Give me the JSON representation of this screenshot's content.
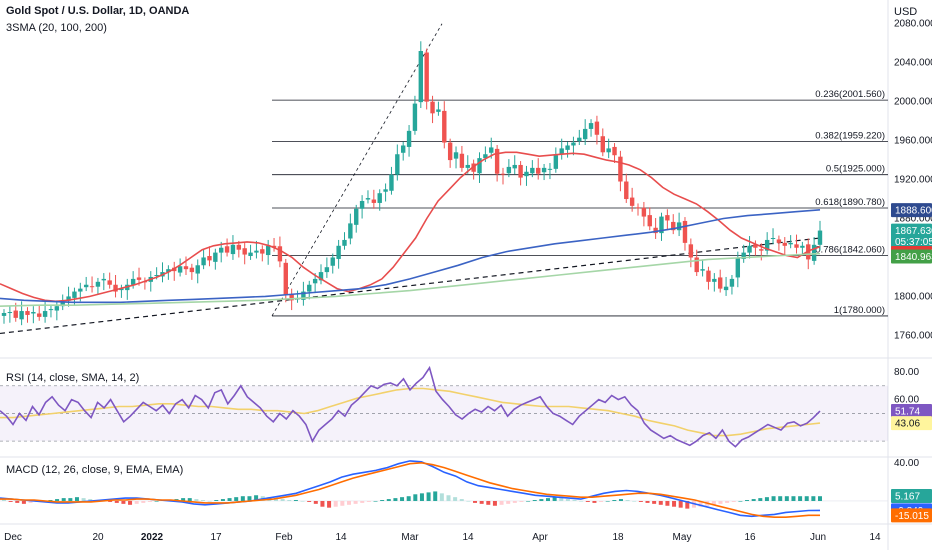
{
  "header": {
    "title": "Gold Spot / U.S. Dollar, 1D, OANDA",
    "ma_legend": "3SMA (20, 100, 200)",
    "currency": "USD"
  },
  "chart_data": [
    {
      "type": "candlestick",
      "title": "Gold Spot / U.S. Dollar, 1D, OANDA",
      "ylabel": "USD",
      "ylim": [
        1745,
        2090
      ],
      "y_ticks": [
        "2080.000",
        "2040.000",
        "2000.000",
        "1960.000",
        "1920.000",
        "1880.000",
        "1840.000",
        "1800.000",
        "1760.000"
      ],
      "x_ticks": [
        "Dec",
        "20",
        "2022",
        "17",
        "Feb",
        "14",
        "Mar",
        "14",
        "Apr",
        "18",
        "May",
        "16",
        "Jun",
        "14"
      ],
      "up_color": "#26a69a",
      "down_color": "#ef5350",
      "closes": [
        1783,
        1784,
        1778,
        1785,
        1781,
        1784,
        1779,
        1785,
        1787,
        1790,
        1794,
        1800,
        1805,
        1808,
        1812,
        1810,
        1815,
        1818,
        1812,
        1805,
        1808,
        1812,
        1818,
        1817,
        1815,
        1820,
        1822,
        1825,
        1828,
        1826,
        1831,
        1828,
        1825,
        1832,
        1840,
        1837,
        1845,
        1850,
        1845,
        1853,
        1848,
        1843,
        1845,
        1847,
        1844,
        1852,
        1850,
        1836,
        1802,
        1796,
        1798,
        1805,
        1812,
        1818,
        1825,
        1830,
        1840,
        1852,
        1858,
        1875,
        1890,
        1898,
        1901,
        1896,
        1906,
        1910,
        1925,
        1946,
        1955,
        1970,
        1998,
        2052,
        2000,
        1988,
        1992,
        1958,
        1940,
        1948,
        1932,
        1935,
        1928,
        1942,
        1946,
        1953,
        1926,
        1925,
        1933,
        1935,
        1922,
        1928,
        1932,
        1926,
        1932,
        1931,
        1945,
        1952,
        1955,
        1958,
        1963,
        1972,
        1978,
        1966,
        1948,
        1952,
        1945,
        1918,
        1900,
        1893,
        1891,
        1882,
        1872,
        1865,
        1882,
        1878,
        1868,
        1876,
        1855,
        1840,
        1825,
        1828,
        1815,
        1818,
        1808,
        1810,
        1818,
        1840,
        1845,
        1852,
        1850,
        1847,
        1858,
        1860,
        1855,
        1852,
        1855,
        1850,
        1852,
        1838,
        1853,
        1867.63
      ],
      "series": [
        {
          "name": "SMA 20",
          "color": "#e84d4d",
          "values": [
            1813,
            1808,
            1803,
            1799,
            1796,
            1795,
            1796,
            1798,
            1800,
            1803,
            1806,
            1809,
            1812,
            1816,
            1820,
            1825,
            1832,
            1840,
            1848,
            1852,
            1854,
            1855,
            1856,
            1855,
            1852,
            1847,
            1840,
            1830,
            1822,
            1815,
            1808,
            1805,
            1808,
            1812,
            1818,
            1830,
            1845,
            1860,
            1880,
            1898,
            1910,
            1922,
            1932,
            1940,
            1946,
            1948,
            1948,
            1946,
            1944,
            1945,
            1946,
            1947,
            1946,
            1943,
            1940,
            1938,
            1935,
            1930,
            1922,
            1912,
            1905,
            1900,
            1895,
            1887,
            1878,
            1868,
            1860,
            1855,
            1850,
            1846,
            1842,
            1840,
            1847,
            1851
          ]
        },
        {
          "name": "SMA 100",
          "color": "#3b63c4",
          "values": [
            1798,
            1796,
            1795,
            1794,
            1794,
            1794,
            1795,
            1796,
            1797,
            1798,
            1799,
            1800,
            1802,
            1804,
            1806,
            1808,
            1812,
            1818,
            1825,
            1832,
            1840,
            1846,
            1850,
            1854,
            1857,
            1860,
            1863,
            1866,
            1870,
            1875,
            1880,
            1883,
            1885,
            1887,
            1889
          ]
        },
        {
          "name": "SMA 200",
          "color": "#a5d6a7",
          "values": [
            1790,
            1791,
            1791,
            1792,
            1793,
            1794,
            1795,
            1796,
            1798,
            1800,
            1803,
            1806,
            1810,
            1814,
            1818,
            1822,
            1826,
            1830,
            1834,
            1838,
            1840,
            1842,
            1844
          ]
        }
      ],
      "fibonacci": [
        {
          "label": "0.236(2001.560)",
          "value": 2001.56
        },
        {
          "label": "0.382(1959.220)",
          "value": 1959.22
        },
        {
          "label": "0.5(1925.000)",
          "value": 1925.0
        },
        {
          "label": "0.618(1890.780)",
          "value": 1890.78
        },
        {
          "label": "0.786(1842.060)",
          "value": 1842.06
        },
        {
          "label": "1(1780.000)",
          "value": 1780.0
        }
      ],
      "price_labels": [
        {
          "text": "1888.600",
          "value": 1888.6,
          "bg": "#2e4a8f",
          "fg": "#ffffff"
        },
        {
          "text": "1867.630",
          "value": 1867.63,
          "bg": "#26a69a",
          "fg": "#ffffff"
        },
        {
          "text": "05:37:05",
          "value": 1856.5,
          "bg": "#26a69a",
          "fg": "#ffffff"
        },
        {
          "text": "1844.577",
          "value": 1844.577,
          "bg": "#e53935",
          "fg": "#ffffff"
        },
        {
          "text": "1840.963",
          "value": 1840.963,
          "bg": "#43a047",
          "fg": "#ffffff"
        }
      ]
    },
    {
      "type": "line",
      "title": "RSI (14, close, SMA, 14, 2)",
      "ylim": [
        20,
        85
      ],
      "y_ticks": [
        "80.00",
        "60.00"
      ],
      "bands": [
        70,
        50,
        30
      ],
      "series": [
        {
          "name": "RSI",
          "color": "#7e57c2",
          "values": [
            52,
            48,
            42,
            50,
            45,
            55,
            49,
            58,
            62,
            56,
            52,
            60,
            58,
            52,
            47,
            58,
            54,
            60,
            52,
            44,
            48,
            53,
            58,
            55,
            52,
            56,
            50,
            57,
            60,
            54,
            63,
            60,
            54,
            65,
            67,
            57,
            63,
            70,
            62,
            58,
            54,
            48,
            44,
            50,
            46,
            52,
            48,
            42,
            30,
            38,
            42,
            46,
            52,
            48,
            56,
            60,
            65,
            70,
            68,
            71,
            72,
            70,
            75,
            67,
            72,
            76,
            83,
            66,
            60,
            55,
            49,
            46,
            50,
            53,
            51,
            55,
            52,
            56,
            48,
            53,
            56,
            58,
            60,
            62,
            55,
            50,
            48,
            45,
            42,
            48,
            52,
            56,
            60,
            58,
            63,
            60,
            62,
            56,
            52,
            43,
            38,
            35,
            32,
            34,
            31,
            29,
            27,
            30,
            34,
            36,
            32,
            38,
            30,
            26,
            31,
            33,
            36,
            39,
            42,
            40,
            38,
            43,
            44,
            41,
            43,
            47,
            51.74
          ]
        },
        {
          "name": "RSI-based MA",
          "color": "#f2d16b",
          "values": [
            47,
            47,
            48,
            49,
            50,
            51,
            52,
            53,
            54,
            55,
            55,
            56,
            57,
            57,
            56,
            55,
            55,
            54,
            53,
            53,
            52,
            52,
            51,
            50,
            52,
            55,
            58,
            61,
            63,
            65,
            67,
            68,
            68,
            67,
            66,
            64,
            62,
            60,
            58,
            57,
            56,
            55,
            55,
            55,
            54,
            53,
            52,
            50,
            48,
            45,
            43,
            41,
            38,
            36,
            34,
            34,
            35,
            37,
            39,
            40,
            41,
            42,
            43.06
          ]
        }
      ],
      "price_labels": [
        {
          "text": "51.74",
          "value": 51.74,
          "bg": "#7e57c2",
          "fg": "#ffffff"
        },
        {
          "text": "43.06",
          "value": 43.06,
          "bg": "#fff59d",
          "fg": "#131722"
        }
      ]
    },
    {
      "type": "bar",
      "title": "MACD (12, 26, close, 9, EMA, EMA)",
      "ylim": [
        -22,
        45
      ],
      "y_ticks": [
        "40.00"
      ],
      "histogram": [
        2,
        -1,
        -2,
        -3,
        -2,
        -1,
        0,
        1,
        2,
        3,
        3,
        4,
        3,
        2,
        1,
        0,
        -1,
        -2,
        -3,
        -4,
        -3,
        -2,
        -1,
        0,
        1,
        1,
        2,
        3,
        3,
        2,
        1,
        0,
        1,
        2,
        3,
        4,
        5,
        5,
        6,
        5,
        4,
        3,
        2,
        1,
        1,
        0,
        -1,
        -3,
        -6,
        -7,
        -6,
        -5,
        -4,
        -3,
        -2,
        -1,
        0,
        1,
        2,
        3,
        4,
        5,
        7,
        8,
        9,
        10,
        8,
        6,
        4,
        2,
        0,
        -2,
        -3,
        -4,
        -5,
        -4,
        -3,
        -2,
        -1,
        0,
        1,
        2,
        3,
        4,
        3,
        2,
        1,
        0,
        -1,
        -2,
        -1,
        0,
        1,
        2,
        1,
        0,
        -1,
        -2,
        -3,
        -4,
        -5,
        -6,
        -7,
        -8,
        -7,
        -6,
        -5,
        -4,
        -3,
        -2,
        -1,
        0,
        1,
        2,
        3,
        4,
        5,
        5,
        5,
        5,
        5,
        5,
        5,
        5
      ],
      "series": [
        {
          "name": "MACD",
          "color": "#2962ff",
          "values": [
            3,
            2,
            1,
            0,
            -1,
            -2,
            -2,
            -1,
            0,
            1,
            2,
            3,
            3,
            2,
            1,
            0,
            -1,
            -3,
            -4,
            -3,
            -2,
            -1,
            0,
            2,
            4,
            6,
            8,
            12,
            16,
            20,
            25,
            28,
            30,
            32,
            35,
            39,
            42,
            41,
            36,
            30,
            26,
            20,
            16,
            14,
            12,
            10,
            8,
            6,
            5,
            4,
            3,
            2,
            5,
            8,
            10,
            11,
            10,
            8,
            6,
            3,
            0,
            -3,
            -6,
            -9,
            -12,
            -15,
            -16,
            -15,
            -14,
            -12,
            -11,
            -10,
            -9.849
          ]
        },
        {
          "name": "Signal",
          "color": "#ff6d00",
          "values": [
            2,
            2,
            1,
            1,
            0,
            -1,
            -1,
            -1,
            -1,
            0,
            1,
            1,
            2,
            2,
            1,
            1,
            0,
            -1,
            -2,
            -2,
            -2,
            -1,
            0,
            1,
            2,
            4,
            6,
            9,
            12,
            16,
            20,
            24,
            27,
            30,
            33,
            36,
            39,
            40,
            38,
            35,
            31,
            27,
            23,
            19,
            16,
            13,
            11,
            9,
            7,
            6,
            5,
            4,
            4,
            5,
            6,
            7,
            8,
            8,
            7,
            5,
            3,
            1,
            -2,
            -5,
            -8,
            -11,
            -14,
            -16,
            -17,
            -17,
            -16,
            -15,
            -15.015
          ]
        }
      ],
      "price_labels": [
        {
          "text": "5.167",
          "value": 5.167,
          "bg": "#26a69a",
          "fg": "#ffffff"
        },
        {
          "text": "-9.849",
          "value": -9.849,
          "bg": "#2962ff",
          "fg": "#ffffff"
        },
        {
          "text": "-15.015",
          "value": -15.015,
          "bg": "#ff6d00",
          "fg": "#ffffff"
        }
      ]
    }
  ]
}
